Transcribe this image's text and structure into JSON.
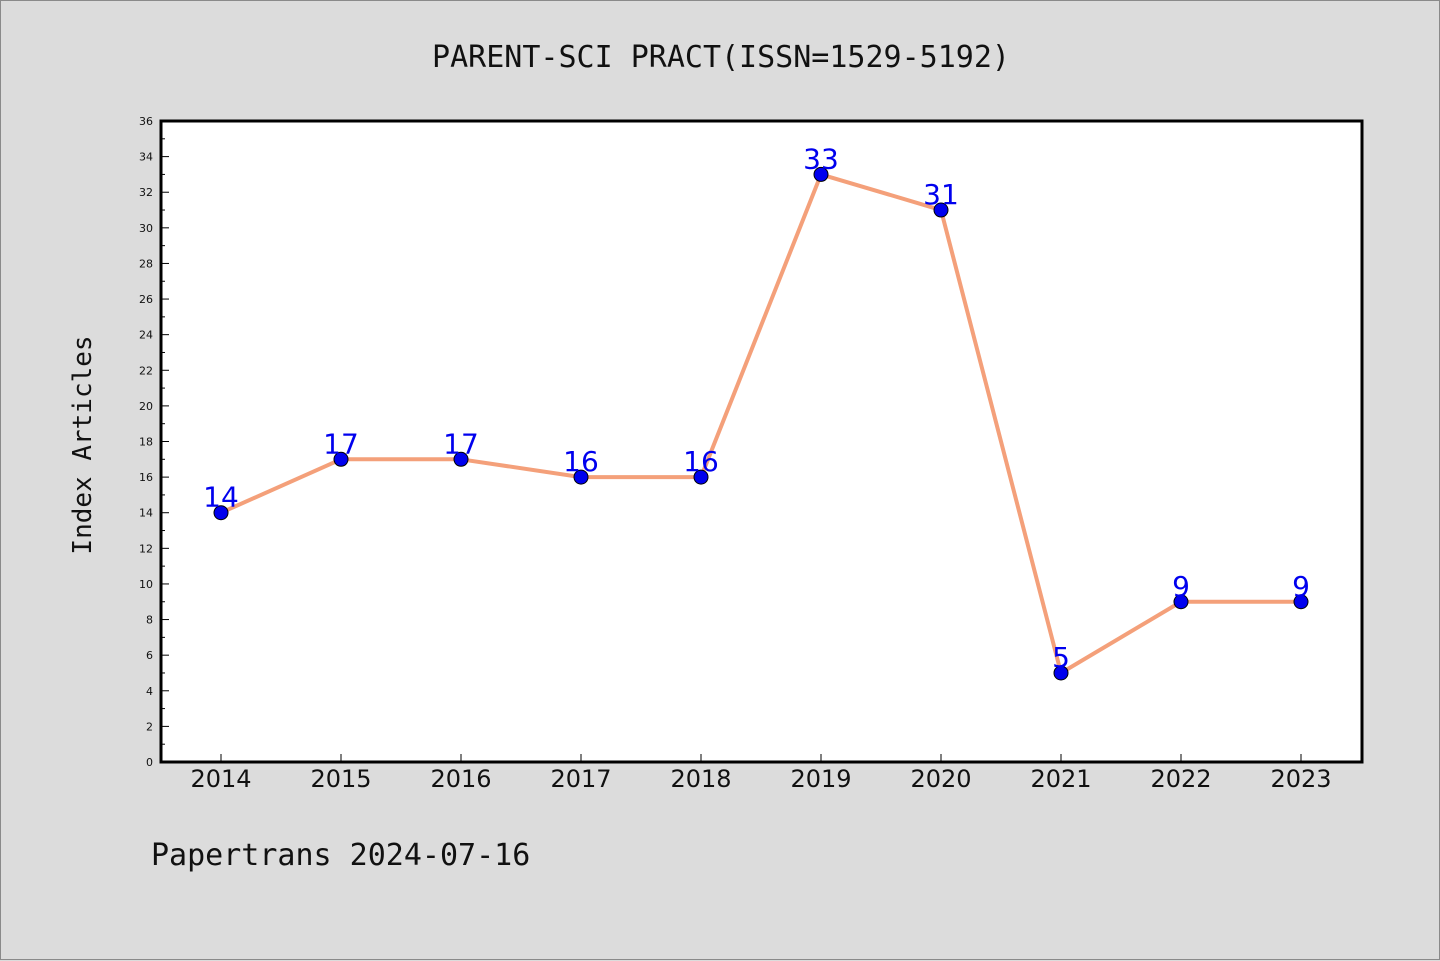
{
  "chart_data": {
    "type": "line",
    "title": "PARENT-SCI PRACT(ISSN=1529-5192)",
    "xlabel": "",
    "ylabel": "Index Articles",
    "categories": [
      "2014",
      "2015",
      "2016",
      "2017",
      "2018",
      "2019",
      "2020",
      "2021",
      "2022",
      "2023"
    ],
    "series": [
      {
        "values": [
          14,
          17,
          17,
          16,
          16,
          33,
          31,
          5,
          9,
          9
        ]
      }
    ],
    "ylim": [
      0,
      36
    ],
    "yticks": [
      0,
      2,
      4,
      6,
      8,
      10,
      12,
      14,
      16,
      18,
      20,
      22,
      24,
      26,
      28,
      30,
      32,
      34,
      36
    ],
    "grid": false,
    "legend": "none",
    "data_labels": true,
    "colors": {
      "line": "#f4a07a",
      "marker": "#0000ee",
      "label": "#0000ee",
      "background": "#dcdcdc",
      "plot_background": "#ffffff"
    }
  },
  "footer": {
    "text": "Papertrans 2024-07-16"
  }
}
